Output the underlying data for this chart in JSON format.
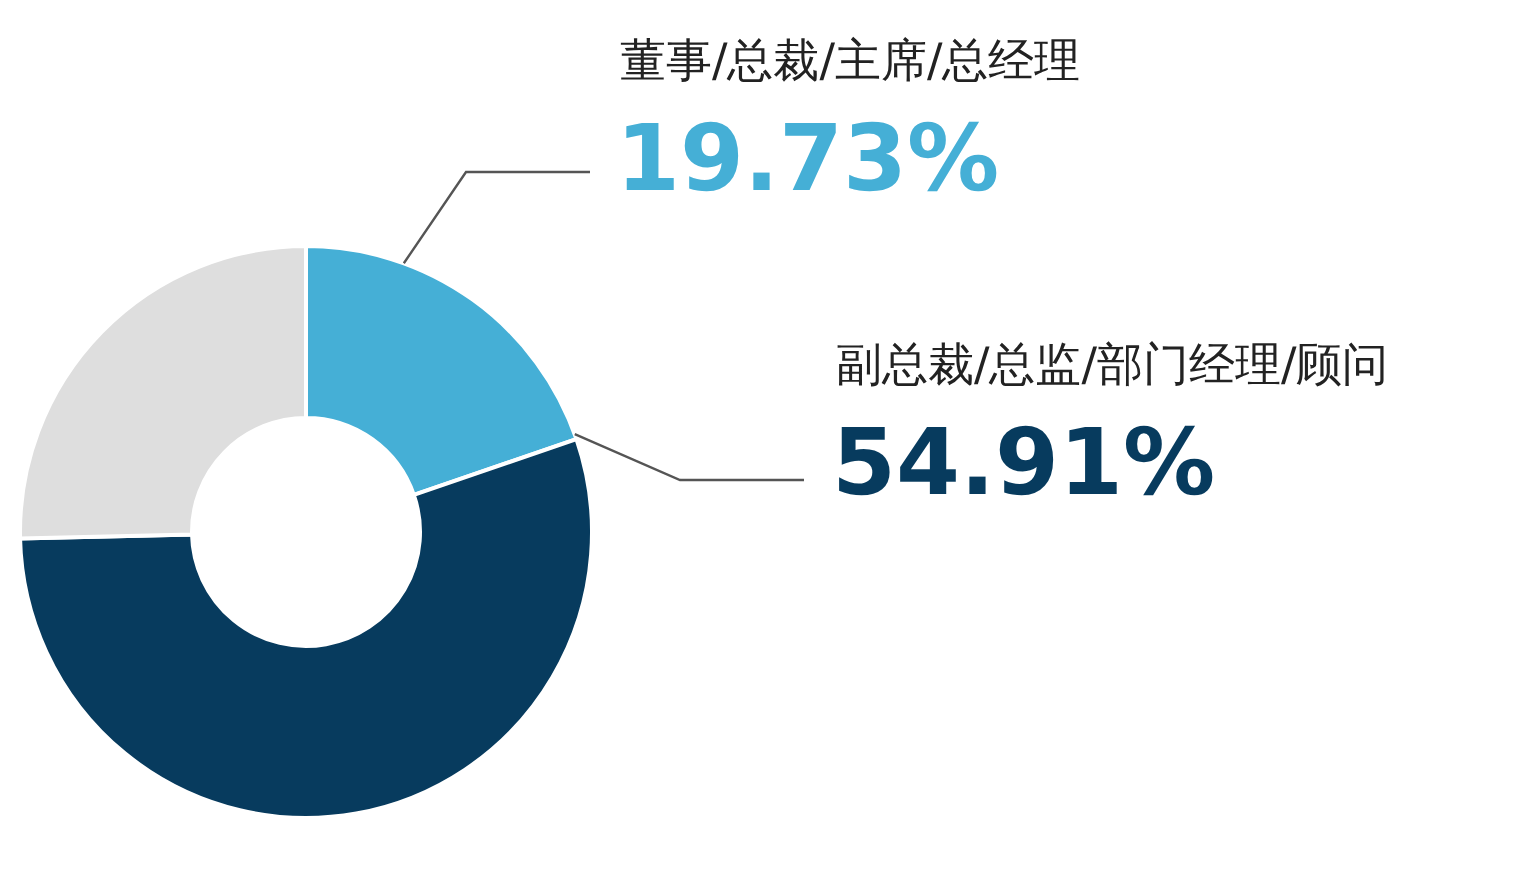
{
  "chart_data": {
    "type": "donut",
    "categories": [
      "董事/总裁/主席/总经理",
      "副总裁/总监/部门经理/顾问",
      null
    ],
    "values": [
      19.73,
      54.91,
      25.36
    ],
    "colors": [
      "#45afd6",
      "#073b5e",
      "#dedede"
    ],
    "value_labels": [
      "19.73%",
      "54.91%",
      null
    ]
  }
}
